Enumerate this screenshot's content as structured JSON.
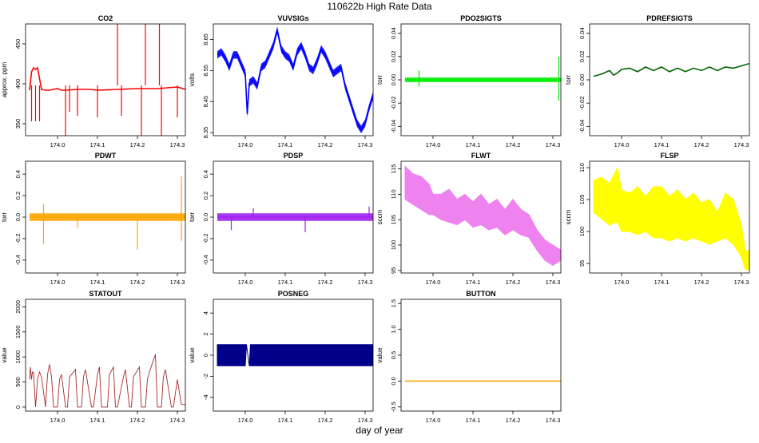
{
  "figure": {
    "title": "110622b   High Rate Data",
    "xlabel": "day of year"
  },
  "chart_data": [
    {
      "name": "CO2",
      "type": "line",
      "color": "#ff0000",
      "ylabel": "approx. ppm",
      "xlim": [
        173.92,
        174.32
      ],
      "xticks": [
        174.0,
        174.1,
        174.2,
        174.3
      ],
      "ylim": [
        335,
        475
      ],
      "yticks": [
        350,
        400,
        450
      ],
      "x": [
        173.93,
        173.935,
        173.94,
        173.945,
        173.95,
        173.96,
        173.97,
        173.98,
        173.99,
        174.0,
        174.01,
        174.02,
        174.05,
        174.08,
        174.1,
        174.15,
        174.2,
        174.25,
        174.3,
        174.32
      ],
      "y": [
        392,
        415,
        420,
        418,
        420,
        393,
        392,
        392,
        393,
        394,
        392,
        392,
        393,
        393,
        392,
        393,
        394,
        394,
        396,
        393
      ],
      "spikes": [
        {
          "x": 173.935,
          "y": 353
        },
        {
          "x": 173.945,
          "y": 353
        },
        {
          "x": 173.955,
          "y": 353
        },
        {
          "x": 174.02,
          "y": 335
        },
        {
          "x": 174.03,
          "y": 365
        },
        {
          "x": 174.05,
          "y": 360
        },
        {
          "x": 174.1,
          "y": 358
        },
        {
          "x": 174.15,
          "y": 475
        },
        {
          "x": 174.16,
          "y": 360
        },
        {
          "x": 174.21,
          "y": 335
        },
        {
          "x": 174.22,
          "y": 475
        },
        {
          "x": 174.255,
          "y": 475
        },
        {
          "x": 174.26,
          "y": 335
        },
        {
          "x": 174.3,
          "y": 358
        }
      ]
    },
    {
      "name": "VUVSIGs",
      "type": "line",
      "color": "#0000ff",
      "ylabel": "volts",
      "xlim": [
        173.92,
        174.32
      ],
      "xticks": [
        174.0,
        174.1,
        174.2,
        174.3
      ],
      "ylim": [
        8.34,
        8.7
      ],
      "yticks": [
        8.35,
        8.45,
        8.55,
        8.65
      ],
      "x": [
        173.93,
        173.94,
        173.95,
        173.96,
        173.97,
        173.98,
        173.99,
        174.0,
        174.005,
        174.01,
        174.02,
        174.03,
        174.04,
        174.05,
        174.06,
        174.07,
        174.08,
        174.09,
        174.1,
        174.11,
        174.12,
        174.13,
        174.14,
        174.15,
        174.16,
        174.17,
        174.18,
        174.19,
        174.2,
        174.21,
        174.22,
        174.23,
        174.24,
        174.25,
        174.26,
        174.27,
        174.28,
        174.29,
        174.3,
        174.31,
        174.32
      ],
      "y": [
        8.6,
        8.61,
        8.59,
        8.56,
        8.6,
        8.6,
        8.57,
        8.54,
        8.41,
        8.51,
        8.52,
        8.5,
        8.56,
        8.57,
        8.6,
        8.63,
        8.68,
        8.62,
        8.6,
        8.59,
        8.56,
        8.61,
        8.63,
        8.6,
        8.56,
        8.55,
        8.58,
        8.62,
        8.6,
        8.57,
        8.54,
        8.55,
        8.56,
        8.5,
        8.46,
        8.42,
        8.38,
        8.36,
        8.38,
        8.43,
        8.47
      ],
      "band": 0.012
    },
    {
      "name": "PDO2SIGTS",
      "type": "line",
      "color": "#00ee00",
      "ylabel": "torr",
      "xlim": [
        173.92,
        174.32
      ],
      "xticks": [
        174.0,
        174.1,
        174.2,
        174.3
      ],
      "ylim": [
        -0.048,
        0.048
      ],
      "yticks": [
        -0.04,
        -0.02,
        0.0,
        0.02,
        0.04
      ],
      "x": [
        173.93,
        174.32
      ],
      "y": [
        0.0,
        0.0
      ],
      "band": 0.002,
      "spikes": [
        {
          "x": 173.965,
          "y": 0.008
        },
        {
          "x": 173.965,
          "y": -0.006
        },
        {
          "x": 174.315,
          "y": 0.02
        },
        {
          "x": 174.315,
          "y": -0.018
        }
      ]
    },
    {
      "name": "PDREFSIGTS",
      "type": "line",
      "color": "#006400",
      "ylabel": "torr",
      "xlim": [
        173.92,
        174.32
      ],
      "xticks": [
        174.0,
        174.1,
        174.2,
        174.3
      ],
      "ylim": [
        -0.048,
        0.048
      ],
      "yticks": [
        -0.04,
        -0.02,
        0.0,
        0.02,
        0.04
      ],
      "x": [
        173.93,
        173.95,
        173.97,
        173.98,
        173.99,
        174.0,
        174.02,
        174.04,
        174.06,
        174.08,
        174.1,
        174.12,
        174.14,
        174.16,
        174.18,
        174.2,
        174.22,
        174.24,
        174.26,
        174.28,
        174.3,
        174.32
      ],
      "y": [
        0.003,
        0.005,
        0.008,
        0.004,
        0.006,
        0.009,
        0.01,
        0.007,
        0.011,
        0.008,
        0.011,
        0.007,
        0.01,
        0.007,
        0.01,
        0.008,
        0.011,
        0.008,
        0.011,
        0.01,
        0.012,
        0.014
      ]
    },
    {
      "name": "PDWT",
      "type": "line",
      "color": "#ffa500",
      "ylabel": "torr",
      "xlim": [
        173.92,
        174.32
      ],
      "xticks": [
        174.0,
        174.1,
        174.2,
        174.3
      ],
      "ylim": [
        -0.52,
        0.52
      ],
      "yticks": [
        -0.4,
        -0.2,
        0.0,
        0.2,
        0.4
      ],
      "x": [
        173.93,
        174.32
      ],
      "y": [
        0.0,
        0.0
      ],
      "band": 0.035,
      "spikes": [
        {
          "x": 173.965,
          "y": -0.25
        },
        {
          "x": 173.965,
          "y": 0.12
        },
        {
          "x": 174.05,
          "y": -0.1
        },
        {
          "x": 174.2,
          "y": -0.3
        },
        {
          "x": 174.31,
          "y": 0.38
        },
        {
          "x": 174.31,
          "y": -0.22
        }
      ]
    },
    {
      "name": "PDSP",
      "type": "line",
      "color": "#a020f0",
      "ylabel": "torr",
      "xlim": [
        173.92,
        174.32
      ],
      "xticks": [
        174.0,
        174.1,
        174.2,
        174.3
      ],
      "ylim": [
        -0.52,
        0.52
      ],
      "yticks": [
        -0.4,
        -0.2,
        0.0,
        0.2,
        0.4
      ],
      "x": [
        173.93,
        174.32
      ],
      "y": [
        0.0,
        0.0
      ],
      "band": 0.035,
      "spikes": [
        {
          "x": 173.965,
          "y": -0.12
        },
        {
          "x": 174.02,
          "y": 0.08
        },
        {
          "x": 174.15,
          "y": -0.14
        },
        {
          "x": 174.31,
          "y": 0.1
        }
      ]
    },
    {
      "name": "FLWT",
      "type": "area",
      "color": "#ee82ee",
      "ylabel": "sccm",
      "xlim": [
        173.92,
        174.32
      ],
      "xticks": [
        174.0,
        174.1,
        174.2,
        174.3
      ],
      "ylim": [
        94.5,
        116.5
      ],
      "yticks": [
        95,
        100,
        105,
        110,
        115
      ],
      "x": [
        173.93,
        173.95,
        173.97,
        173.99,
        174.0,
        174.02,
        174.04,
        174.06,
        174.08,
        174.1,
        174.12,
        174.14,
        174.16,
        174.18,
        174.2,
        174.22,
        174.24,
        174.26,
        174.28,
        174.3,
        174.32
      ],
      "ymin": [
        109,
        108,
        107,
        106,
        106,
        105,
        104.5,
        104,
        105,
        103.5,
        104,
        103,
        103.5,
        102,
        103,
        102,
        101.5,
        99,
        97,
        96,
        97
      ],
      "ymax": [
        115.5,
        114,
        113.5,
        112,
        110,
        110,
        111,
        109,
        110,
        108.5,
        110,
        108,
        109,
        107,
        109,
        107,
        106,
        103,
        101,
        100,
        99
      ]
    },
    {
      "name": "FLSP",
      "type": "area",
      "color": "#ffff00",
      "ylabel": "sccm",
      "xlim": [
        173.92,
        174.32
      ],
      "xticks": [
        174.0,
        174.1,
        174.2,
        174.3
      ],
      "ylim": [
        93.5,
        111
      ],
      "yticks": [
        95,
        100,
        105,
        110
      ],
      "x": [
        173.93,
        173.95,
        173.97,
        173.99,
        174.0,
        174.02,
        174.04,
        174.06,
        174.08,
        174.1,
        174.12,
        174.14,
        174.16,
        174.18,
        174.2,
        174.22,
        174.24,
        174.26,
        174.28,
        174.3,
        174.31,
        174.32
      ],
      "ymin": [
        103,
        102,
        101,
        101.5,
        100,
        100,
        99.5,
        100,
        99,
        99,
        98.5,
        99,
        98.5,
        99,
        98.5,
        98,
        98.5,
        99,
        98,
        96,
        94,
        94
      ],
      "ymax": [
        108,
        108.5,
        107.5,
        110,
        106.5,
        106,
        107,
        105.5,
        107,
        107,
        105.5,
        106.5,
        105,
        106,
        104.5,
        105,
        103,
        106,
        105,
        101,
        97,
        97
      ]
    },
    {
      "name": "STATOUT",
      "type": "line",
      "color": "#a52a2a",
      "ylabel": "value",
      "xlim": [
        173.92,
        174.32
      ],
      "xticks": [
        174.0,
        174.1,
        174.2,
        174.3
      ],
      "ylim": [
        -80,
        2150
      ],
      "yticks": [
        0,
        500,
        1000,
        1500,
        2000
      ],
      "x": [
        173.93,
        173.932,
        173.935,
        173.937,
        173.94,
        173.945,
        173.95,
        173.955,
        173.96,
        173.97,
        173.975,
        173.98,
        173.985,
        173.99,
        174.0,
        174.005,
        174.01,
        174.02,
        174.025,
        174.03,
        174.045,
        174.05,
        174.06,
        174.065,
        174.07,
        174.085,
        174.09,
        174.1,
        174.105,
        174.11,
        174.125,
        174.13,
        174.14,
        174.145,
        174.15,
        174.165,
        174.17,
        174.18,
        174.185,
        174.19,
        174.205,
        174.21,
        174.22,
        174.225,
        174.23,
        174.245,
        174.25,
        174.26,
        174.265,
        174.27,
        174.285,
        174.29,
        174.3,
        174.31,
        174.32
      ],
      "y": [
        550,
        800,
        550,
        700,
        700,
        0,
        550,
        700,
        600,
        0,
        650,
        850,
        600,
        0,
        0,
        550,
        650,
        0,
        0,
        600,
        750,
        0,
        0,
        600,
        750,
        0,
        0,
        650,
        800,
        0,
        0,
        650,
        800,
        0,
        0,
        600,
        750,
        0,
        0,
        600,
        800,
        0,
        0,
        550,
        700,
        1050,
        0,
        0,
        600,
        750,
        0,
        0,
        550,
        50,
        50
      ]
    },
    {
      "name": "POSNEG",
      "type": "area",
      "color": "#00008b",
      "ylabel": "value",
      "xlim": [
        173.92,
        174.32
      ],
      "xticks": [
        174.0,
        174.1,
        174.2,
        174.3
      ],
      "ylim": [
        -5.3,
        5.3
      ],
      "yticks": [
        -4,
        -2,
        0,
        2,
        4
      ],
      "x": [
        173.93,
        174.0,
        174.003,
        174.01,
        174.013,
        174.32
      ],
      "ymin": [
        -1,
        -1,
        1,
        -1,
        -1,
        -1
      ],
      "ymax": [
        1,
        1,
        1,
        -1,
        1,
        1
      ]
    },
    {
      "name": "BUTTON",
      "type": "line",
      "color": "#ffa500",
      "ylabel": "value",
      "xlim": [
        173.92,
        174.32
      ],
      "xticks": [
        174.0,
        174.1,
        174.2,
        174.3
      ],
      "ylim": [
        -0.58,
        1.58
      ],
      "yticks": [
        -0.5,
        0.0,
        0.5,
        1.0,
        1.5
      ],
      "x": [
        173.93,
        174.32
      ],
      "y": [
        0.0,
        0.0
      ]
    }
  ]
}
